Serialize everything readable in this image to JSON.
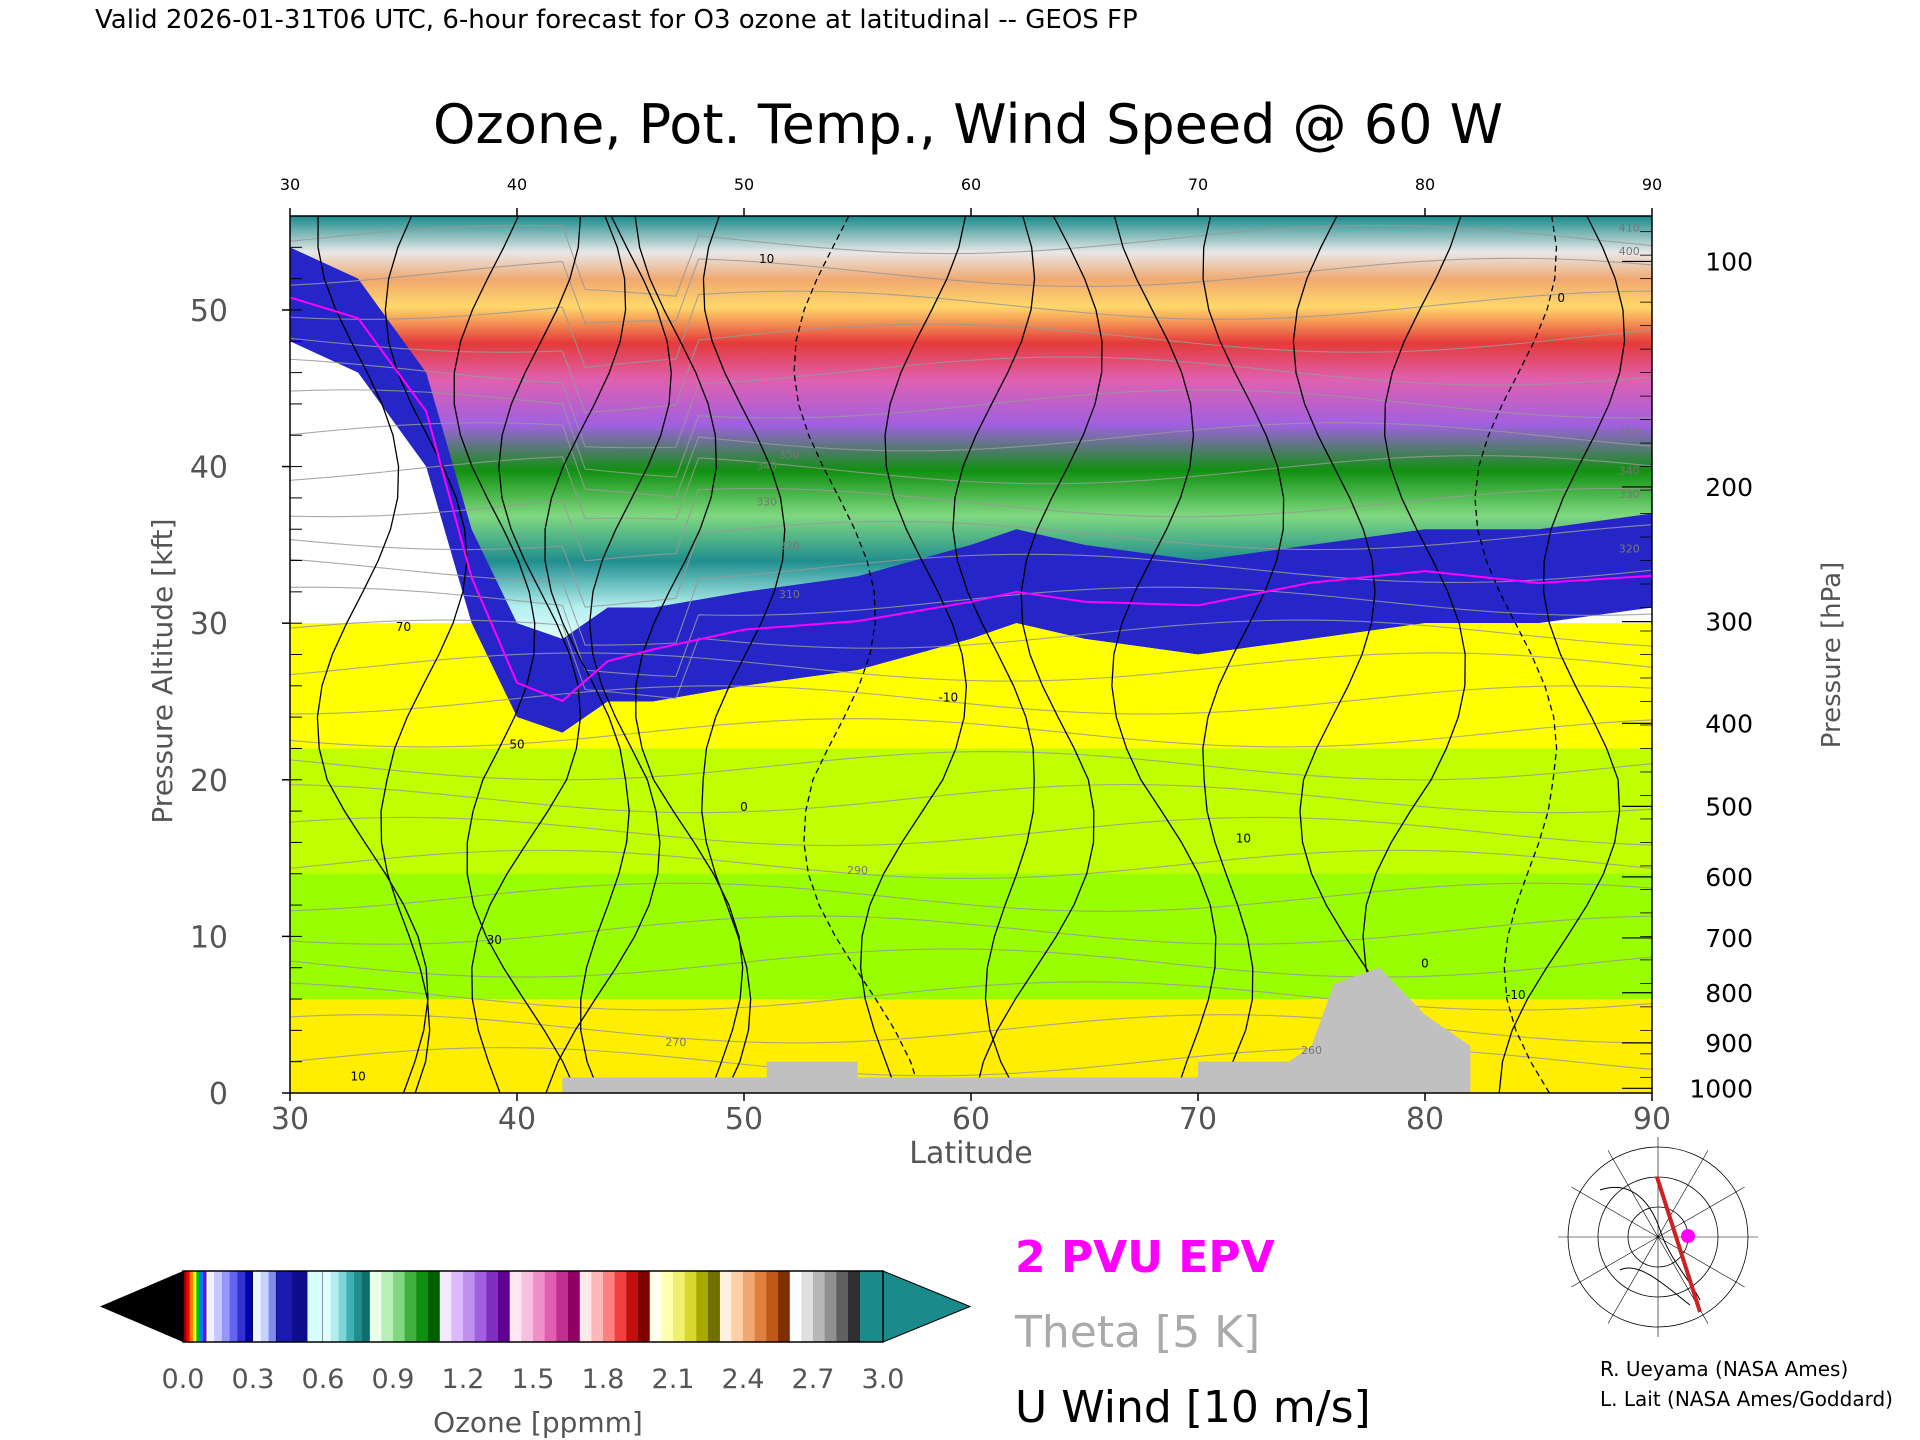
{
  "header": {
    "valid_text": "Valid 2026-01-31T06 UTC, 6-hour forecast for O3 ozone at latitudinal -- GEOS FP"
  },
  "chart_data": {
    "type": "heatmap",
    "title": "Ozone, Pot. Temp., Wind Speed @ 60 W",
    "xlabel": "Latitude",
    "ylabel_left": "Pressure Altitude [kft]",
    "ylabel_right": "Pressure [hPa]",
    "xlim": [
      30,
      90
    ],
    "ylim": [
      0,
      56
    ],
    "x_ticks": [
      "30",
      "40",
      "50",
      "60",
      "70",
      "80",
      "90"
    ],
    "top_ticks": [
      "30",
      "40",
      "50",
      "60",
      "70",
      "80",
      "90"
    ],
    "y_ticks": [
      "0",
      "10",
      "20",
      "30",
      "40",
      "50"
    ],
    "pressure_ticks": [
      {
        "label": "100",
        "kft": 53.1
      },
      {
        "label": "200",
        "kft": 38.7
      },
      {
        "label": "300",
        "kft": 30.1
      },
      {
        "label": "400",
        "kft": 23.6
      },
      {
        "label": "500",
        "kft": 18.3
      },
      {
        "label": "600",
        "kft": 13.8
      },
      {
        "label": "700",
        "kft": 9.9
      },
      {
        "label": "800",
        "kft": 6.4
      },
      {
        "label": "900",
        "kft": 3.2
      },
      {
        "label": "1000",
        "kft": 0.3
      }
    ],
    "tropopause_kft": [
      [
        30,
        52
      ],
      [
        33,
        50
      ],
      [
        36,
        44
      ],
      [
        38,
        34
      ],
      [
        40,
        28
      ],
      [
        42,
        27
      ],
      [
        44,
        29
      ],
      [
        46,
        29
      ],
      [
        50,
        30
      ],
      [
        55,
        31
      ],
      [
        60,
        33
      ],
      [
        62,
        34
      ],
      [
        65,
        33
      ],
      [
        70,
        32
      ],
      [
        75,
        33
      ],
      [
        80,
        34
      ],
      [
        85,
        34
      ],
      [
        90,
        35
      ]
    ],
    "topography_kft": [
      [
        30,
        0
      ],
      [
        42,
        0
      ],
      [
        42,
        1
      ],
      [
        51,
        1
      ],
      [
        51,
        2
      ],
      [
        55,
        2
      ],
      [
        55,
        1
      ],
      [
        70,
        1
      ],
      [
        70,
        2
      ],
      [
        74,
        2
      ],
      [
        75,
        3
      ],
      [
        76,
        7
      ],
      [
        78,
        8
      ],
      [
        80,
        5
      ],
      [
        82,
        3
      ],
      [
        82,
        0
      ],
      [
        90,
        0
      ]
    ],
    "theta_labels": [
      {
        "text": "310",
        "x": 52,
        "y": 31.6
      },
      {
        "text": "320",
        "x": 52,
        "y": 34.7
      },
      {
        "text": "330",
        "x": 51,
        "y": 37.5
      },
      {
        "text": "340",
        "x": 51,
        "y": 39.8
      },
      {
        "text": "350",
        "x": 52,
        "y": 40.5
      },
      {
        "text": "290",
        "x": 55,
        "y": 14
      },
      {
        "text": "270",
        "x": 47,
        "y": 3
      },
      {
        "text": "260",
        "x": 75,
        "y": 2.5
      },
      {
        "text": "320",
        "x": 89,
        "y": 34.5
      },
      {
        "text": "330",
        "x": 89,
        "y": 38
      },
      {
        "text": "340",
        "x": 89,
        "y": 39.5
      },
      {
        "text": "350",
        "x": 89,
        "y": 42
      },
      {
        "text": "400",
        "x": 89,
        "y": 53.5
      },
      {
        "text": "410",
        "x": 89,
        "y": 55
      }
    ],
    "wind_labels": [
      {
        "text": "70",
        "x": 35,
        "y": 29.5
      },
      {
        "text": "50",
        "x": 40,
        "y": 22
      },
      {
        "text": "30",
        "x": 39,
        "y": 9.5
      },
      {
        "text": "10",
        "x": 33,
        "y": 0.8
      },
      {
        "text": "10",
        "x": 51,
        "y": 53
      },
      {
        "text": "10",
        "x": 72,
        "y": 16
      },
      {
        "text": "-10",
        "x": 59,
        "y": 25
      },
      {
        "text": "-10",
        "x": 84,
        "y": 6
      },
      {
        "text": "0",
        "x": 50,
        "y": 18
      },
      {
        "text": "0",
        "x": 80,
        "y": 8
      },
      {
        "text": "0",
        "x": 86,
        "y": 50.5
      }
    ],
    "colorbar": {
      "ticks": [
        "0.0",
        "0.3",
        "0.6",
        "0.9",
        "1.2",
        "1.5",
        "1.8",
        "2.1",
        "2.4",
        "2.7",
        "3.0"
      ],
      "label": "Ozone [ppmm]",
      "range": [
        0,
        3
      ],
      "under_color": "#000000",
      "over_color": "#1a8a8a",
      "groups": [
        {
          "from": 0.0,
          "to": 0.1,
          "colors": [
            "#8b0000",
            "#ff0000",
            "#ff8000",
            "#ffff00",
            "#00c000",
            "#0080ff",
            "#8000ff"
          ]
        },
        {
          "from": 0.1,
          "to": 0.3,
          "colors": [
            "#f0f0ff",
            "#c8c8ff",
            "#9696ff",
            "#6464f0",
            "#3232d2",
            "#0000a8"
          ]
        },
        {
          "from": 0.3,
          "to": 0.4,
          "colors": [
            "#eef3ff",
            "#c7d2ff",
            "#7f8cf0"
          ]
        },
        {
          "from": 0.4,
          "to": 0.6,
          "colors": [
            "#1a1ab0",
            "#0c0c8c",
            "#d8ffff"
          ]
        },
        {
          "from": 0.6,
          "to": 0.8,
          "colors": [
            "#e0ffff",
            "#b3eeee",
            "#7fd4d4",
            "#40b0b0",
            "#208e8e",
            "#0d6e6e"
          ]
        },
        {
          "from": 0.8,
          "to": 1.1,
          "colors": [
            "#e8ffe8",
            "#b8f0b8",
            "#80d880",
            "#40b040",
            "#109010",
            "#006000"
          ]
        },
        {
          "from": 1.1,
          "to": 1.4,
          "colors": [
            "#f4e8ff",
            "#dcb8ff",
            "#c090f0",
            "#a060e0",
            "#8030c0",
            "#600090"
          ]
        },
        {
          "from": 1.4,
          "to": 1.7,
          "colors": [
            "#ffe8f4",
            "#f8c0e0",
            "#f090c8",
            "#e060b0",
            "#c03090",
            "#900060"
          ]
        },
        {
          "from": 1.7,
          "to": 2.0,
          "colors": [
            "#ffe8e8",
            "#ffb8b8",
            "#ff8080",
            "#f04040",
            "#c01010",
            "#800000"
          ]
        },
        {
          "from": 2.0,
          "to": 2.3,
          "colors": [
            "#fffff0",
            "#ffffb0",
            "#f0f070",
            "#d8d830",
            "#a8a800",
            "#707000"
          ]
        },
        {
          "from": 2.3,
          "to": 2.6,
          "colors": [
            "#fff0e0",
            "#ffd0a8",
            "#f0a870",
            "#e08040",
            "#c05818",
            "#803000"
          ]
        },
        {
          "from": 2.6,
          "to": 2.9,
          "colors": [
            "#ffffff",
            "#e0e0e0",
            "#b8b8b8",
            "#909090",
            "#606060",
            "#303030"
          ]
        },
        {
          "from": 2.9,
          "to": 3.0,
          "colors": [
            "#1a8a8a"
          ]
        }
      ]
    },
    "tropo_fill_bands": [
      {
        "kft_below": 30,
        "color": "#ffff00"
      },
      {
        "kft_below": 22,
        "color": "#c0ff00"
      },
      {
        "kft_below": 14,
        "color": "#99ff00"
      },
      {
        "kft_below": 6,
        "color": "#ffee00"
      }
    ],
    "legend": {
      "epv": {
        "text": "2 PVU EPV",
        "color": "#ff00ff"
      },
      "theta": {
        "text": "Theta [5 K]",
        "color": "#aaaaaa"
      },
      "wind": {
        "text": "U Wind [10 m/s]",
        "color": "#000000"
      }
    },
    "colors": {
      "epv_line": "#ff00ff",
      "theta_line": "#999999",
      "wind_line": "#000000",
      "topography": "#c0c0c0",
      "map_route": "#cc2222",
      "map_marker": "#ff00ff"
    }
  },
  "credits": [
    "R. Ueyama (NASA Ames)",
    "L. Lait (NASA Ames/Goddard)"
  ],
  "locator_map": {
    "icons": [
      "globe-grid-icon",
      "route-line-icon",
      "location-marker-icon"
    ],
    "route_lon": -60,
    "route_lat_range": [
      30,
      90
    ],
    "marker_lat": 60
  }
}
